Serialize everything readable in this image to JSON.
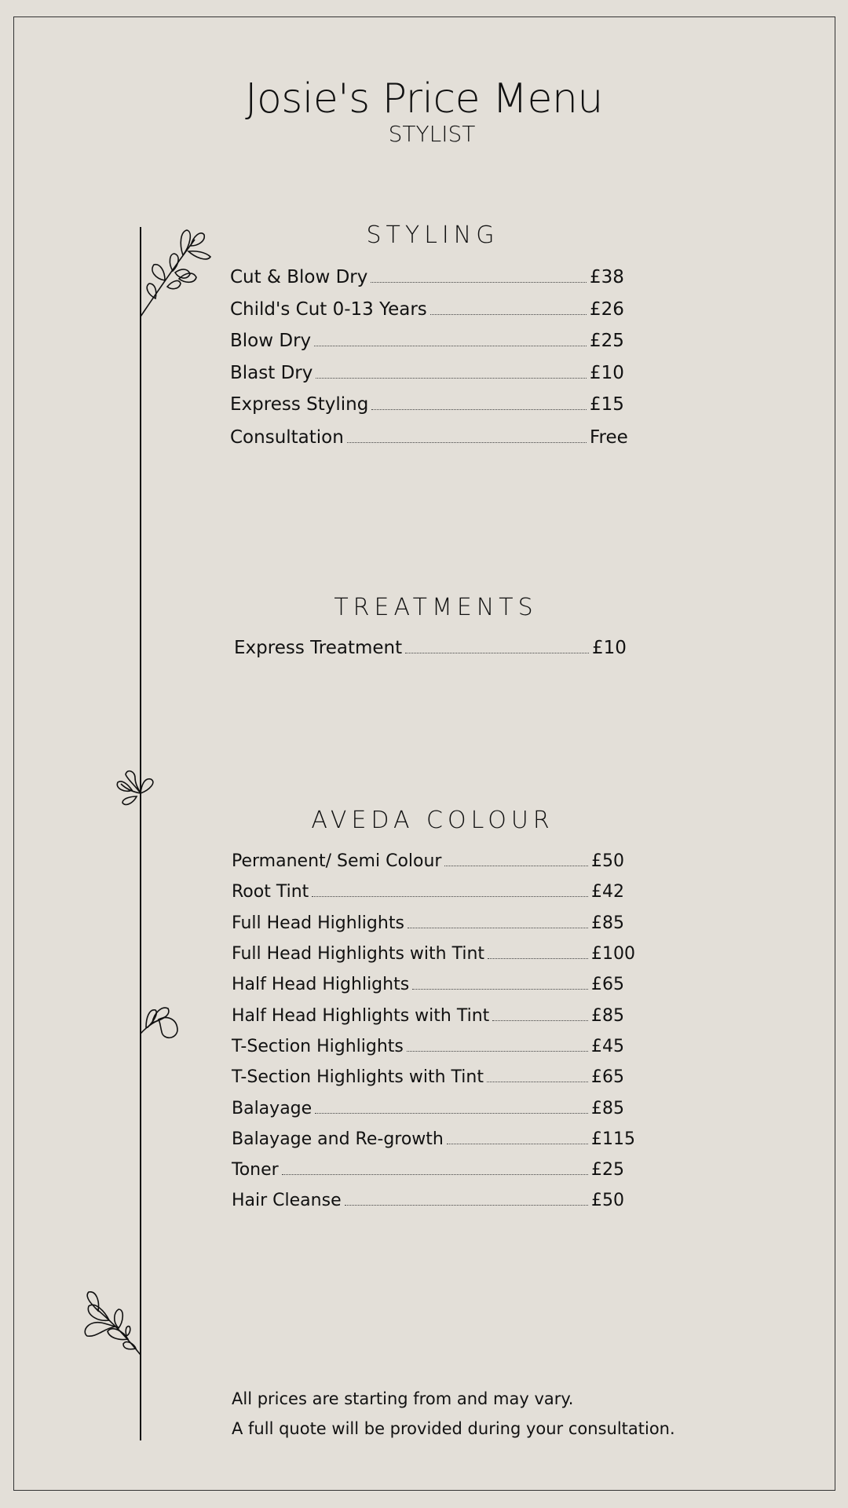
{
  "header": {
    "title": "Josie's Price Menu",
    "subtitle": "STYLIST"
  },
  "sections": [
    {
      "title": "STYLING",
      "items": [
        {
          "name": "Cut & Blow Dry",
          "price": "£38"
        },
        {
          "name": "Child's Cut 0-13 Years",
          "price": "£26"
        },
        {
          "name": "Blow Dry",
          "price": "£25"
        },
        {
          "name": "Blast Dry",
          "price": "£10"
        },
        {
          "name": "Express Styling",
          "price": "£15"
        },
        {
          "name": "Consultation",
          "price": "Free"
        }
      ]
    },
    {
      "title": "TREATMENTS",
      "items": [
        {
          "name": "Express Treatment",
          "price": "£10"
        }
      ]
    },
    {
      "title": "AVEDA COLOUR",
      "items": [
        {
          "name": "Permanent/ Semi Colour",
          "price": "£50"
        },
        {
          "name": "Root Tint",
          "price": "£42"
        },
        {
          "name": "Full Head Highlights",
          "price": "£85"
        },
        {
          "name": "Full Head Highlights with Tint",
          "price": "£100"
        },
        {
          "name": "Half Head Highlights",
          "price": "£65"
        },
        {
          "name": "Half Head Highlights with Tint",
          "price": "£85"
        },
        {
          "name": "T-Section Highlights",
          "price": "£45"
        },
        {
          "name": "T-Section Highlights with Tint",
          "price": "£65"
        },
        {
          "name": "Balayage",
          "price": "£85"
        },
        {
          "name": "Balayage and Re-growth",
          "price": "£115"
        },
        {
          "name": "Toner",
          "price": "£25"
        },
        {
          "name": "Hair Cleanse",
          "price": "£50"
        }
      ]
    }
  ],
  "footer": {
    "line1": "All prices are starting from and may vary.",
    "line2": "A full quote will be provided during your consultation."
  },
  "colors": {
    "background": "#e3dfd8",
    "text": "#111111"
  }
}
